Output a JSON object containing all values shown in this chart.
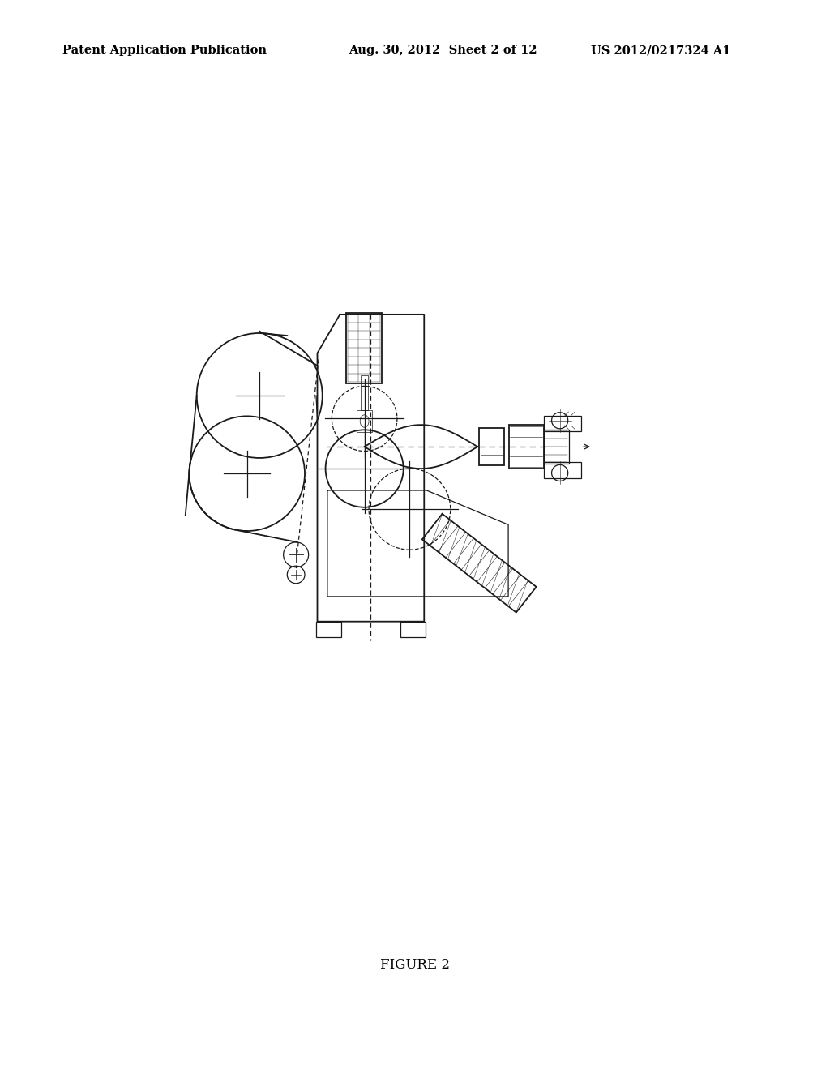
{
  "bg_color": "#ffffff",
  "header_left": "Patent Application Publication",
  "header_center": "Aug. 30, 2012  Sheet 2 of 12",
  "header_right": "US 2012/0217324 A1",
  "figure_label": "FIGURE 2",
  "color": "#1a1a1a"
}
